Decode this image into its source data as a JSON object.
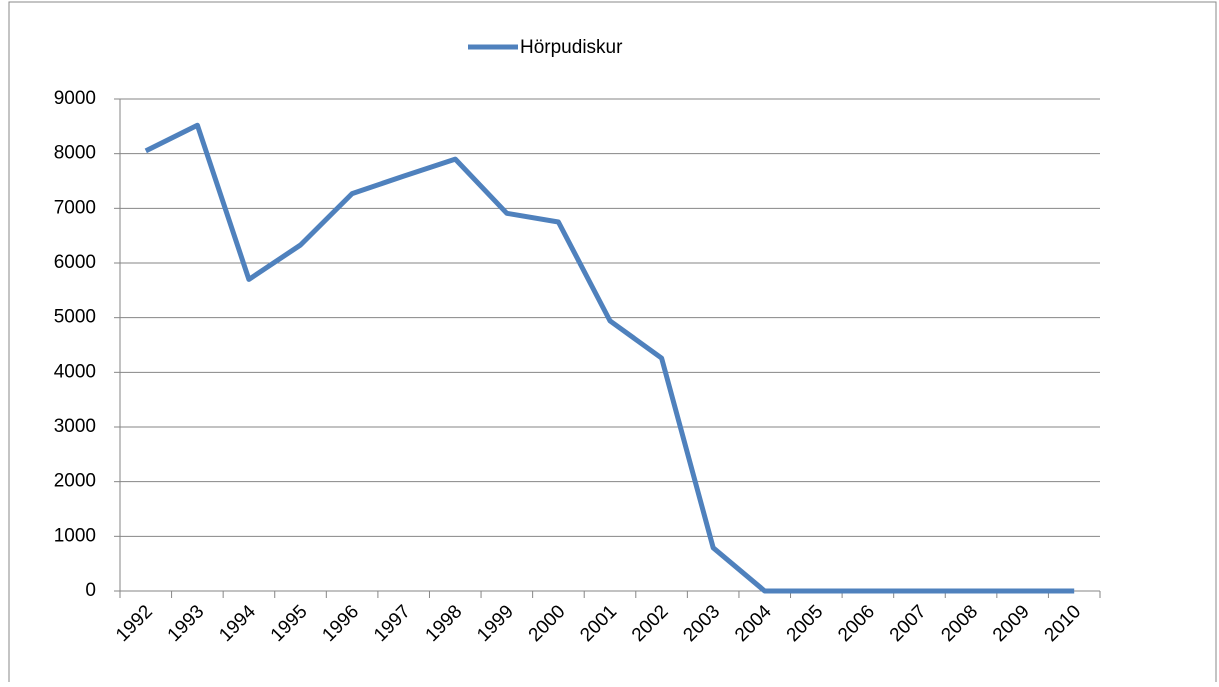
{
  "chart_data": {
    "type": "line",
    "categories": [
      "1992",
      "1993",
      "1994",
      "1995",
      "1996",
      "1997",
      "1998",
      "1999",
      "2000",
      "2001",
      "2002",
      "2003",
      "2004",
      "2005",
      "2006",
      "2007",
      "2008",
      "2009",
      "2010"
    ],
    "series": [
      {
        "name": "Hörpudiskur",
        "color": "#4f81bd",
        "values": [
          8050,
          8520,
          5700,
          6330,
          7270,
          7590,
          7900,
          6910,
          6750,
          4940,
          4260,
          790,
          0,
          0,
          0,
          0,
          0,
          0,
          0
        ]
      }
    ],
    "ylim": [
      0,
      9000
    ],
    "yticks": [
      0,
      1000,
      2000,
      3000,
      4000,
      5000,
      6000,
      7000,
      8000,
      9000
    ],
    "grid": true,
    "legend": "top"
  }
}
